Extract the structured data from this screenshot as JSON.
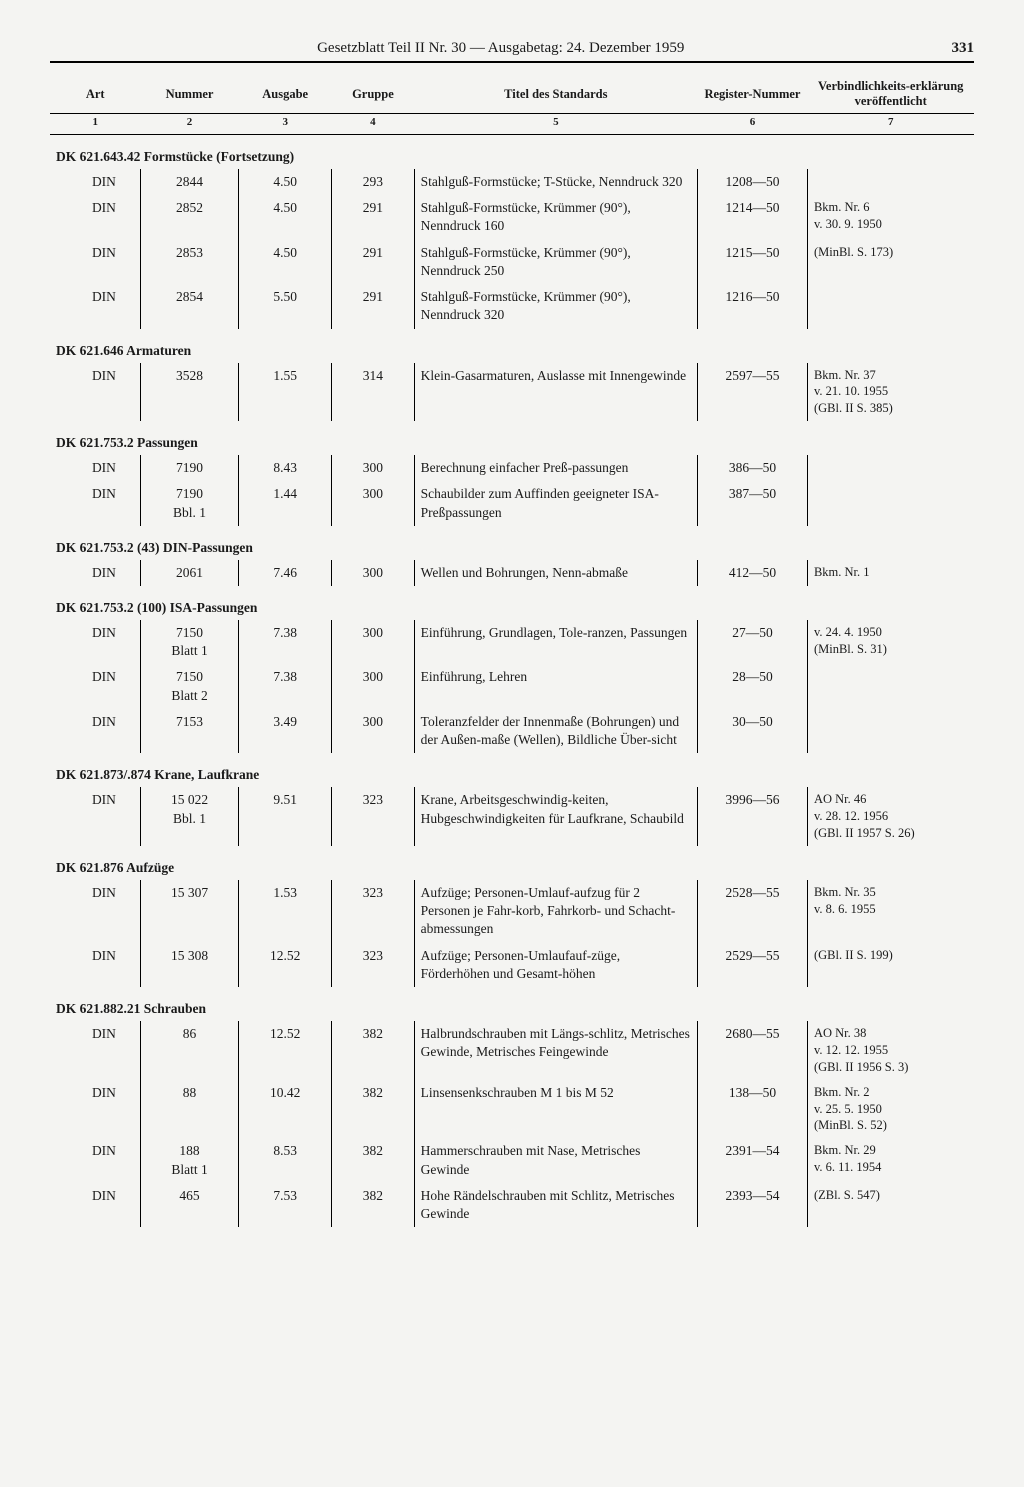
{
  "header": {
    "title": "Gesetzblatt Teil II Nr. 30 — Ausgabetag: 24. Dezember 1959",
    "page": "331"
  },
  "columns": {
    "h1": "Art",
    "h2": "Nummer",
    "h3": "Ausgabe",
    "h4": "Gruppe",
    "h5": "Titel des Standards",
    "h6": "Register-Nummer",
    "h7": "Verbindlichkeits-erklärung veröffentlicht",
    "n1": "1",
    "n2": "2",
    "n3": "3",
    "n4": "4",
    "n5": "5",
    "n6": "6",
    "n7": "7"
  },
  "sections": [
    {
      "head": "DK 621.643.42 Formstücke (Fortsetzung)",
      "rows": [
        {
          "art": "DIN",
          "num": "2844",
          "ausg": "4.50",
          "grp": "293",
          "titl": "Stahlguß-Formstücke; T-Stücke, Nenndruck 320",
          "reg": "1208—50",
          "verb": ""
        },
        {
          "art": "DIN",
          "num": "2852",
          "ausg": "4.50",
          "grp": "291",
          "titl": "Stahlguß-Formstücke, Krümmer (90°), Nenndruck 160",
          "reg": "1214—50",
          "verb": "Bkm. Nr. 6\nv. 30. 9. 1950"
        },
        {
          "art": "DIN",
          "num": "2853",
          "ausg": "4.50",
          "grp": "291",
          "titl": "Stahlguß-Formstücke, Krümmer (90°), Nenndruck 250",
          "reg": "1215—50",
          "verb": "(MinBl. S. 173)"
        },
        {
          "art": "DIN",
          "num": "2854",
          "ausg": "5.50",
          "grp": "291",
          "titl": "Stahlguß-Formstücke, Krümmer (90°), Nenndruck 320",
          "reg": "1216—50",
          "verb": ""
        }
      ]
    },
    {
      "head": "DK 621.646 Armaturen",
      "rows": [
        {
          "art": "DIN",
          "num": "3528",
          "ausg": "1.55",
          "grp": "314",
          "titl": "Klein-Gasarmaturen, Auslasse mit Innengewinde",
          "reg": "2597—55",
          "verb": "Bkm. Nr. 37\nv. 21. 10. 1955\n(GBl. II S. 385)"
        }
      ]
    },
    {
      "head": "DK 621.753.2 Passungen",
      "rows": [
        {
          "art": "DIN",
          "num": "7190",
          "ausg": "8.43",
          "grp": "300",
          "titl": "Berechnung einfacher Preß-passungen",
          "reg": "386—50",
          "verb": ""
        },
        {
          "art": "DIN",
          "num": "7190\nBbl. 1",
          "ausg": "1.44",
          "grp": "300",
          "titl": "Schaubilder zum Auffinden geeigneter ISA-Preßpassungen",
          "reg": "387—50",
          "verb": ""
        }
      ]
    },
    {
      "head": "DK 621.753.2 (43) DIN-Passungen",
      "rows": [
        {
          "art": "DIN",
          "num": "2061",
          "ausg": "7.46",
          "grp": "300",
          "titl": "Wellen und Bohrungen, Nenn-abmaße",
          "reg": "412—50",
          "verb": "Bkm. Nr. 1"
        }
      ]
    },
    {
      "head": "DK 621.753.2 (100) ISA-Passungen",
      "rows": [
        {
          "art": "DIN",
          "num": "7150\nBlatt 1",
          "ausg": "7.38",
          "grp": "300",
          "titl": "Einführung, Grundlagen, Tole-ranzen, Passungen",
          "reg": "27—50",
          "verb": "v. 24. 4. 1950\n(MinBl. S. 31)"
        },
        {
          "art": "DIN",
          "num": "7150\nBlatt 2",
          "ausg": "7.38",
          "grp": "300",
          "titl": "Einführung, Lehren",
          "reg": "28—50",
          "verb": ""
        },
        {
          "art": "DIN",
          "num": "7153",
          "ausg": "3.49",
          "grp": "300",
          "titl": "Toleranzfelder der Innenmaße (Bohrungen) und der Außen-maße (Wellen), Bildliche Über-sicht",
          "reg": "30—50",
          "verb": ""
        }
      ]
    },
    {
      "head": "DK 621.873/.874 Krane, Laufkrane",
      "rows": [
        {
          "art": "DIN",
          "num": "15 022\nBbl. 1",
          "ausg": "9.51",
          "grp": "323",
          "titl": "Krane, Arbeitsgeschwindig-keiten, Hubgeschwindigkeiten für Laufkrane, Schaubild",
          "reg": "3996—56",
          "verb": "AO Nr. 46\nv. 28. 12. 1956\n(GBl. II 1957 S. 26)"
        }
      ]
    },
    {
      "head": "DK 621.876 Aufzüge",
      "rows": [
        {
          "art": "DIN",
          "num": "15 307",
          "ausg": "1.53",
          "grp": "323",
          "titl": "Aufzüge; Personen-Umlauf-aufzug für 2 Personen je Fahr-korb, Fahrkorb- und Schacht-abmessungen",
          "reg": "2528—55",
          "verb": "Bkm. Nr. 35\nv. 8. 6. 1955"
        },
        {
          "art": "DIN",
          "num": "15 308",
          "ausg": "12.52",
          "grp": "323",
          "titl": "Aufzüge; Personen-Umlaufauf-züge, Förderhöhen und Gesamt-höhen",
          "reg": "2529—55",
          "verb": "(GBl. II S. 199)"
        }
      ]
    },
    {
      "head": "DK 621.882.21 Schrauben",
      "rows": [
        {
          "art": "DIN",
          "num": "86",
          "ausg": "12.52",
          "grp": "382",
          "titl": "Halbrundschrauben mit Längs-schlitz, Metrisches Gewinde, Metrisches Feingewinde",
          "reg": "2680—55",
          "verb": "AO Nr. 38\nv. 12. 12. 1955\n(GBl. II 1956 S. 3)"
        },
        {
          "art": "DIN",
          "num": "88",
          "ausg": "10.42",
          "grp": "382",
          "titl": "Linsensenkschrauben M 1 bis M 52",
          "reg": "138—50",
          "verb": "Bkm. Nr. 2\nv. 25. 5. 1950\n(MinBl. S. 52)"
        },
        {
          "art": "DIN",
          "num": "188\nBlatt 1",
          "ausg": "8.53",
          "grp": "382",
          "titl": "Hammerschrauben mit Nase, Metrisches Gewinde",
          "reg": "2391—54",
          "verb": "Bkm. Nr. 29\nv. 6. 11. 1954"
        },
        {
          "art": "DIN",
          "num": "465",
          "ausg": "7.53",
          "grp": "382",
          "titl": "Hohe Rändelschrauben mit Schlitz, Metrisches Gewinde",
          "reg": "2393—54",
          "verb": "(ZBl. S. 547)"
        }
      ]
    }
  ]
}
